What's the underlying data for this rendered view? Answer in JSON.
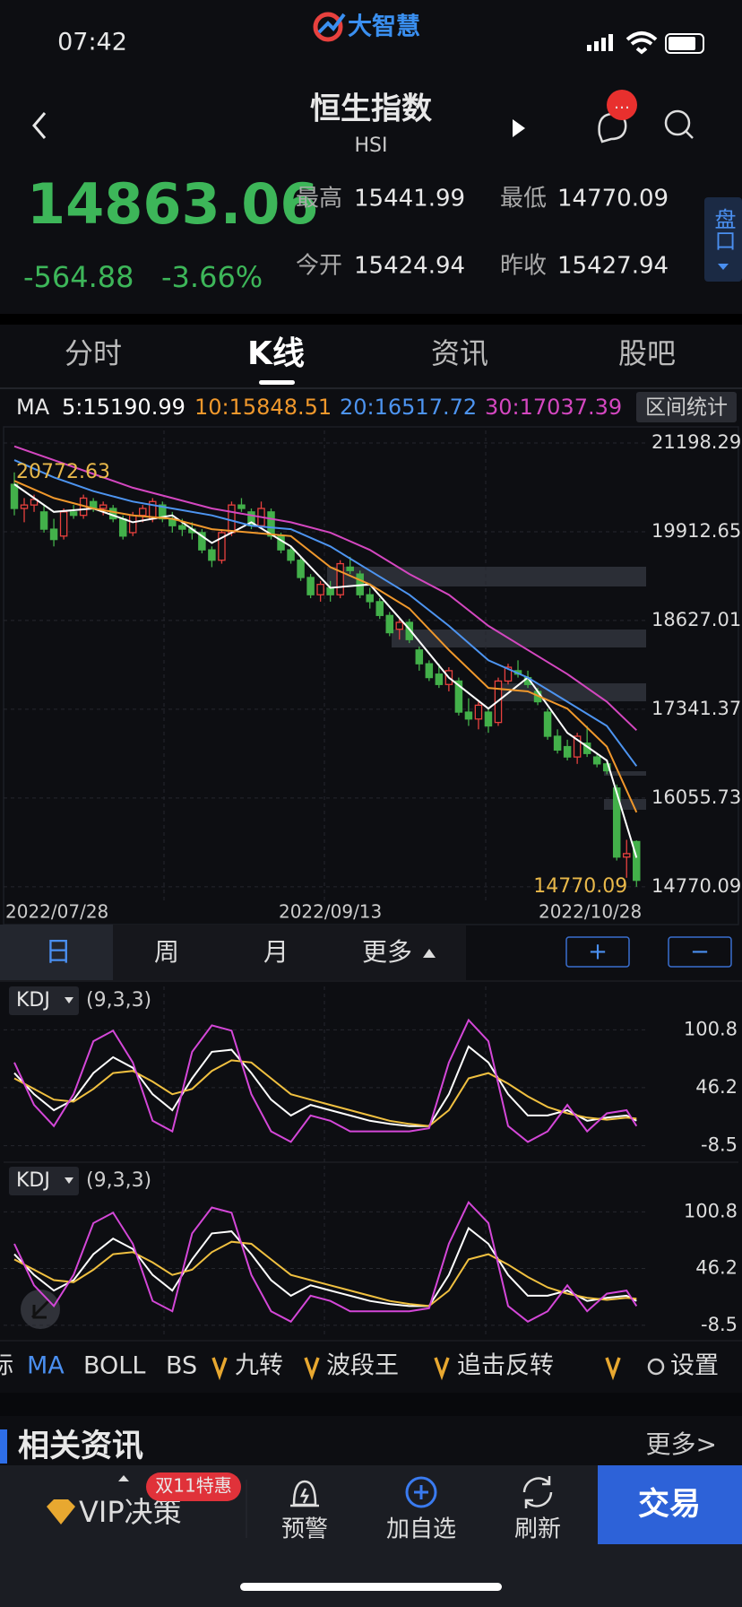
{
  "status_bar": {
    "time": "07:42",
    "app_name": "大智慧"
  },
  "header": {
    "title": "恒生指数",
    "code": "HSI",
    "badge": "…"
  },
  "quote": {
    "price": "14863.06",
    "change": "-564.88",
    "change_pct": "-3.66%",
    "stats": [
      {
        "label": "最高",
        "value": "15441.99"
      },
      {
        "label": "最低",
        "value": "14770.09"
      },
      {
        "label": "今开",
        "value": "15424.94"
      },
      {
        "label": "昨收",
        "value": "15427.94"
      }
    ],
    "side_tab": "盘口"
  },
  "tabs": [
    "分时",
    "K线",
    "资讯",
    "股吧"
  ],
  "range_stats_button": "区间统计",
  "chart_data": [
    {
      "type": "candlestick",
      "ma_label": "MA",
      "categories": [
        "2022/07/28",
        null,
        null,
        null,
        null,
        null,
        null,
        null,
        null,
        null,
        null,
        null,
        null,
        null,
        null,
        null,
        null,
        null,
        null,
        null,
        null,
        null,
        null,
        null,
        null,
        null,
        null,
        null,
        null,
        null,
        null,
        null,
        "2022/09/13",
        null,
        null,
        null,
        null,
        null,
        null,
        null,
        null,
        null,
        null,
        null,
        null,
        null,
        null,
        null,
        null,
        null,
        null,
        null,
        null,
        null,
        null,
        null,
        null,
        null,
        null,
        null,
        null,
        null,
        null,
        "2022/10/28"
      ],
      "ohlc": [
        [
          20600,
          20772.63,
          20150,
          20250
        ],
        [
          20250,
          20400,
          20050,
          20300
        ],
        [
          20300,
          20450,
          20200,
          20380
        ],
        [
          20200,
          20300,
          19900,
          19950
        ],
        [
          19950,
          20100,
          19700,
          19800
        ],
        [
          19850,
          20250,
          19800,
          20200
        ],
        [
          20200,
          20300,
          20100,
          20150
        ],
        [
          20150,
          20450,
          20100,
          20400
        ],
        [
          20350,
          20400,
          20200,
          20250
        ],
        [
          20250,
          20350,
          20150,
          20300
        ],
        [
          20250,
          20300,
          20050,
          20100
        ],
        [
          20100,
          20150,
          19800,
          19850
        ],
        [
          19900,
          20200,
          19850,
          20150
        ],
        [
          20150,
          20300,
          20050,
          20250
        ],
        [
          20100,
          20400,
          20050,
          20350
        ],
        [
          20300,
          20350,
          20050,
          20100
        ],
        [
          20100,
          20200,
          19900,
          20000
        ],
        [
          20000,
          20100,
          19850,
          19950
        ],
        [
          19950,
          20050,
          19800,
          19900
        ],
        [
          19900,
          19950,
          19600,
          19650
        ],
        [
          19650,
          19700,
          19400,
          19500
        ],
        [
          19500,
          19950,
          19450,
          19900
        ],
        [
          19900,
          20350,
          19850,
          20300
        ],
        [
          20300,
          20400,
          20200,
          20250
        ],
        [
          20200,
          20250,
          19950,
          20000
        ],
        [
          20000,
          20350,
          19950,
          20250
        ],
        [
          20200,
          20250,
          19800,
          19850
        ],
        [
          19850,
          19900,
          19600,
          19650
        ],
        [
          19650,
          19700,
          19450,
          19500
        ],
        [
          19500,
          19550,
          19200,
          19250
        ],
        [
          19250,
          19300,
          18950,
          19000
        ],
        [
          19000,
          19200,
          18900,
          19150
        ],
        [
          19100,
          19200,
          18900,
          19000
        ],
        [
          19000,
          19500,
          18950,
          19450
        ],
        [
          19400,
          19550,
          19300,
          19350
        ],
        [
          19300,
          19350,
          18950,
          19000
        ],
        [
          19000,
          19100,
          18800,
          18900
        ],
        [
          18900,
          18950,
          18650,
          18700
        ],
        [
          18700,
          18750,
          18400,
          18450
        ],
        [
          18500,
          18650,
          18350,
          18600
        ],
        [
          18600,
          18650,
          18300,
          18350
        ],
        [
          18200,
          18250,
          17900,
          18000
        ],
        [
          18000,
          18050,
          17750,
          17800
        ],
        [
          17850,
          18000,
          17650,
          17700
        ],
        [
          17700,
          17950,
          17600,
          17900
        ],
        [
          17750,
          17800,
          17250,
          17300
        ],
        [
          17300,
          17500,
          17100,
          17200
        ],
        [
          17200,
          17450,
          17050,
          17400
        ],
        [
          17300,
          17350,
          17000,
          17100
        ],
        [
          17150,
          17800,
          17100,
          17750
        ],
        [
          17750,
          18000,
          17700,
          17950
        ],
        [
          17900,
          18050,
          17800,
          17850
        ],
        [
          17800,
          17900,
          17650,
          17700
        ],
        [
          17600,
          17650,
          17400,
          17450
        ],
        [
          17300,
          17350,
          16900,
          16950
        ],
        [
          16950,
          17050,
          16700,
          16750
        ],
        [
          16800,
          16900,
          16600,
          16650
        ],
        [
          16650,
          17000,
          16550,
          16950
        ],
        [
          16850,
          17100,
          16650,
          16700
        ],
        [
          16650,
          16700,
          16500,
          16550
        ],
        [
          16550,
          16600,
          16400,
          16450
        ],
        [
          16200,
          16250,
          15150,
          15200
        ],
        [
          15200,
          15450,
          14900,
          15250
        ],
        [
          15424.94,
          15441.99,
          14770.09,
          14863.06
        ]
      ],
      "up_color": "#e8413e",
      "down_color": "#43b04a",
      "ma_series": [
        {
          "label": "5:15190.99",
          "color": "#ffffff",
          "x": [
            0,
            4,
            8,
            12,
            16,
            20,
            24,
            28,
            32,
            36,
            40,
            44,
            48,
            52,
            56,
            60,
            63
          ],
          "values": [
            20600,
            20200,
            20250,
            20050,
            20150,
            19750,
            20050,
            19700,
            19100,
            19150,
            18500,
            17800,
            17350,
            17800,
            17000,
            16600,
            15190.99
          ]
        },
        {
          "label": "10:15848.51",
          "color": "#f0982c",
          "x": [
            0,
            4,
            8,
            12,
            16,
            20,
            24,
            28,
            32,
            36,
            40,
            44,
            48,
            52,
            56,
            60,
            63
          ],
          "values": [
            20650,
            20400,
            20250,
            20150,
            20100,
            19950,
            19900,
            19850,
            19400,
            19150,
            18800,
            18200,
            17650,
            17600,
            17350,
            16800,
            15848.51
          ]
        },
        {
          "label": "20:16517.72",
          "color": "#4d94f0",
          "x": [
            0,
            4,
            8,
            12,
            16,
            20,
            24,
            28,
            32,
            36,
            40,
            44,
            48,
            52,
            56,
            60,
            63
          ],
          "values": [
            20950,
            20700,
            20500,
            20350,
            20250,
            20150,
            20000,
            19950,
            19700,
            19350,
            19000,
            18550,
            18050,
            17800,
            17450,
            17100,
            16517.72
          ]
        },
        {
          "label": "30:17037.39",
          "color": "#d447c0",
          "x": [
            0,
            4,
            8,
            12,
            16,
            20,
            24,
            28,
            32,
            36,
            40,
            44,
            48,
            52,
            56,
            60,
            63
          ],
          "values": [
            21150,
            20950,
            20750,
            20550,
            20400,
            20250,
            20150,
            20050,
            19900,
            19650,
            19300,
            19000,
            18550,
            18200,
            17850,
            17450,
            17037.39
          ]
        }
      ],
      "ylim": [
        14560,
        21380
      ],
      "yticks": [
        21198.29,
        19912.65,
        18627.01,
        17341.37,
        16055.73,
        14770.09
      ],
      "high_label": "20772.63",
      "low_label": "14770.09",
      "label_color": "#e8b84a"
    },
    {
      "type": "line",
      "indicator": "KDJ",
      "params": "(9,3,3)",
      "ylim": [
        -19,
        140
      ],
      "yticks": [
        100.8,
        46.2,
        -8.5
      ],
      "x": [
        0,
        2,
        4,
        6,
        8,
        10,
        12,
        14,
        16,
        18,
        20,
        22,
        24,
        26,
        28,
        30,
        32,
        34,
        36,
        38,
        40,
        42,
        44,
        46,
        48,
        50,
        52,
        54,
        56,
        58,
        60,
        62,
        63
      ],
      "series": [
        {
          "color": "#ffffff",
          "values": [
            60,
            40,
            25,
            35,
            60,
            75,
            65,
            40,
            25,
            55,
            80,
            82,
            60,
            35,
            20,
            30,
            25,
            20,
            15,
            12,
            10,
            10,
            40,
            85,
            70,
            40,
            20,
            20,
            25,
            15,
            18,
            20,
            15
          ]
        },
        {
          "color": "#f0c040",
          "values": [
            55,
            45,
            35,
            33,
            45,
            60,
            62,
            52,
            40,
            45,
            62,
            72,
            70,
            55,
            40,
            35,
            30,
            25,
            20,
            15,
            12,
            10,
            25,
            55,
            60,
            50,
            38,
            28,
            22,
            18,
            16,
            18,
            17
          ]
        },
        {
          "color": "#d447d8",
          "values": [
            70,
            30,
            10,
            40,
            90,
            100,
            70,
            15,
            5,
            80,
            105,
            100,
            40,
            5,
            -5,
            20,
            15,
            5,
            5,
            5,
            5,
            8,
            70,
            110,
            90,
            10,
            -5,
            5,
            30,
            5,
            22,
            25,
            10
          ]
        }
      ]
    },
    {
      "type": "line",
      "indicator": "KDJ",
      "params": "(9,3,3)",
      "ylim": [
        -19,
        140
      ],
      "yticks": [
        100.8,
        46.2,
        -8.5
      ],
      "x": [
        0,
        2,
        4,
        6,
        8,
        10,
        12,
        14,
        16,
        18,
        20,
        22,
        24,
        26,
        28,
        30,
        32,
        34,
        36,
        38,
        40,
        42,
        44,
        46,
        48,
        50,
        52,
        54,
        56,
        58,
        60,
        62,
        63
      ],
      "series": [
        {
          "color": "#ffffff",
          "values": [
            60,
            40,
            25,
            35,
            60,
            75,
            65,
            40,
            25,
            55,
            80,
            82,
            60,
            35,
            20,
            30,
            25,
            20,
            15,
            12,
            10,
            10,
            40,
            85,
            70,
            40,
            20,
            20,
            25,
            15,
            18,
            20,
            15
          ]
        },
        {
          "color": "#f0c040",
          "values": [
            55,
            45,
            35,
            33,
            45,
            60,
            62,
            52,
            40,
            45,
            62,
            72,
            70,
            55,
            40,
            35,
            30,
            25,
            20,
            15,
            12,
            10,
            25,
            55,
            60,
            50,
            38,
            28,
            22,
            18,
            16,
            18,
            17
          ]
        },
        {
          "color": "#d447d8",
          "values": [
            70,
            30,
            10,
            40,
            90,
            100,
            70,
            15,
            5,
            80,
            105,
            100,
            40,
            5,
            -5,
            20,
            15,
            5,
            5,
            5,
            5,
            8,
            70,
            110,
            90,
            10,
            -5,
            5,
            30,
            5,
            22,
            25,
            10
          ]
        }
      ]
    }
  ],
  "period_tabs": [
    "日",
    "周",
    "月",
    "更多"
  ],
  "zoom_buttons": [
    "+",
    "−"
  ],
  "indicator_bar": [
    "标",
    "MA",
    "BOLL",
    "BS",
    "九转",
    "波段王",
    "追击反转",
    "设置"
  ],
  "news": {
    "title": "相关资讯",
    "more": "更多>"
  },
  "bottom_nav": {
    "vip": "VIP决策",
    "promo": "双11特惠",
    "items": [
      "预警",
      "加自选",
      "刷新"
    ],
    "trade": "交易"
  }
}
